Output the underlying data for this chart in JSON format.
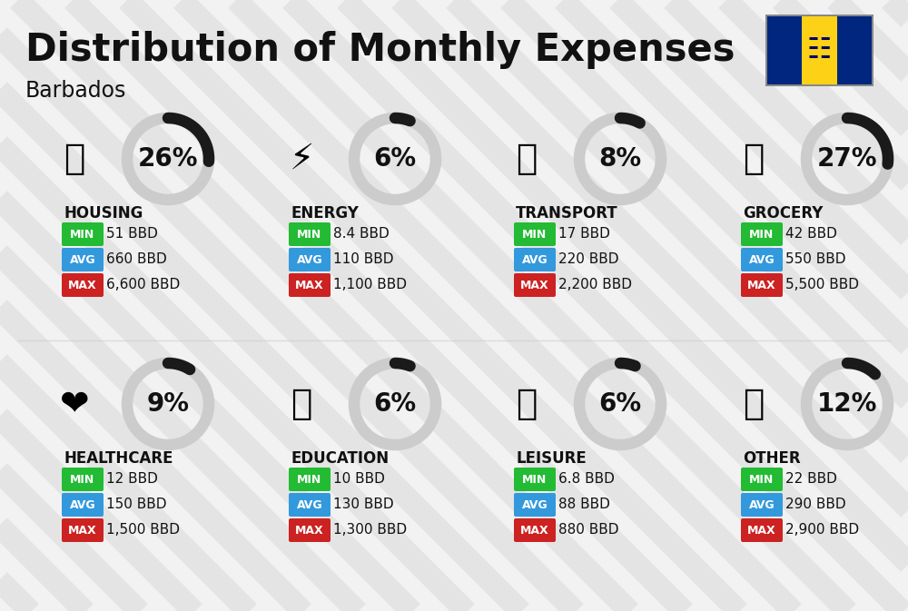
{
  "title": "Distribution of Monthly Expenses",
  "subtitle": "Barbados",
  "background_color": "#f2f2f2",
  "categories": [
    {
      "name": "HOUSING",
      "pct": 26,
      "col": 0,
      "row": 0,
      "min": "51 BBD",
      "avg": "660 BBD",
      "max": "6,600 BBD",
      "icon": "🏢"
    },
    {
      "name": "ENERGY",
      "pct": 6,
      "col": 1,
      "row": 0,
      "min": "8.4 BBD",
      "avg": "110 BBD",
      "max": "1,100 BBD",
      "icon": "⚡"
    },
    {
      "name": "TRANSPORT",
      "pct": 8,
      "col": 2,
      "row": 0,
      "min": "17 BBD",
      "avg": "220 BBD",
      "max": "2,200 BBD",
      "icon": "🚌"
    },
    {
      "name": "GROCERY",
      "pct": 27,
      "col": 3,
      "row": 0,
      "min": "42 BBD",
      "avg": "550 BBD",
      "max": "5,500 BBD",
      "icon": "🛒"
    },
    {
      "name": "HEALTHCARE",
      "pct": 9,
      "col": 0,
      "row": 1,
      "min": "12 BBD",
      "avg": "150 BBD",
      "max": "1,500 BBD",
      "icon": "❤"
    },
    {
      "name": "EDUCATION",
      "pct": 6,
      "col": 1,
      "row": 1,
      "min": "10 BBD",
      "avg": "130 BBD",
      "max": "1,300 BBD",
      "icon": "🎓"
    },
    {
      "name": "LEISURE",
      "pct": 6,
      "col": 2,
      "row": 1,
      "min": "6.8 BBD",
      "avg": "88 BBD",
      "max": "880 BBD",
      "icon": "🛍"
    },
    {
      "name": "OTHER",
      "pct": 12,
      "col": 3,
      "row": 1,
      "min": "22 BBD",
      "avg": "290 BBD",
      "max": "2,900 BBD",
      "icon": "👜"
    }
  ],
  "min_color": "#22bb33",
  "avg_color": "#3399dd",
  "max_color": "#cc2222",
  "label_color": "#ffffff",
  "text_color": "#111111",
  "ring_color_filled": "#1a1a1a",
  "ring_color_empty": "#cccccc",
  "title_fontsize": 30,
  "subtitle_fontsize": 17,
  "category_fontsize": 12,
  "pct_fontsize": 20,
  "value_fontsize": 11,
  "badge_fontsize": 9,
  "icon_fontsize": 28
}
